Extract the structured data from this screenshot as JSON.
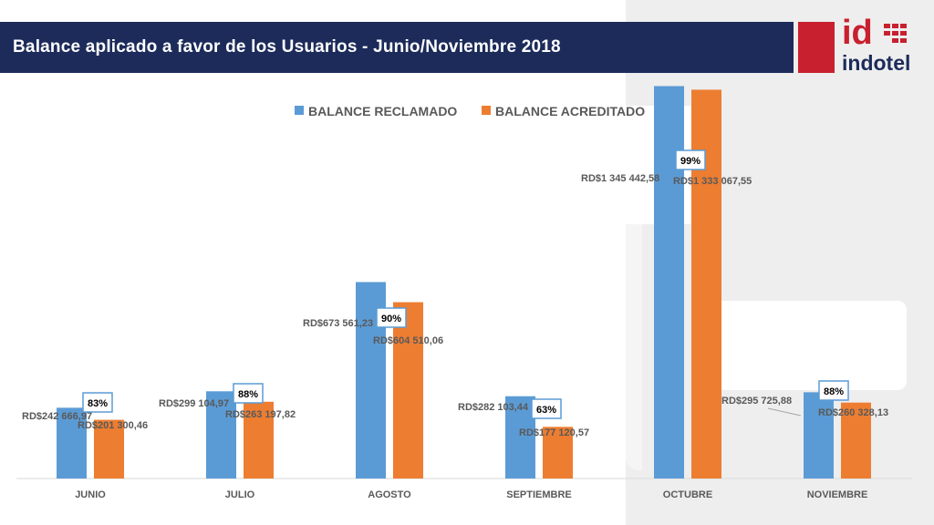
{
  "header": {
    "title": "Balance aplicado a favor de los Usuarios - Junio/Noviembre 2018",
    "logo_id": "id",
    "logo_word": "indotel"
  },
  "colors": {
    "header_bg": "#1c2b5a",
    "logo_red": "#c8202f",
    "reclamado": "#5b9bd5",
    "acreditado": "#ed7d31",
    "percent_box": "#5b9bd5"
  },
  "chart_data": {
    "type": "bar",
    "title": "",
    "xlabel": "",
    "ylabel": "",
    "legend_position": "top-center",
    "grid": false,
    "ylim": [
      0,
      1500000
    ],
    "categories": [
      "JUNIO",
      "JULIO",
      "AGOSTO",
      "SEPTIEMBRE",
      "OCTUBRE",
      "NOVIEMBRE"
    ],
    "series": [
      {
        "name": "BALANCE RECLAMADO",
        "values": [
          242666.97,
          299104.97,
          673561.23,
          282103.44,
          1345442.58,
          295725.88
        ],
        "labels": [
          "RD$242 666,97",
          "RD$299 104,97",
          "RD$673 561,23",
          "RD$282 103,44",
          "RD$1 345 442,58",
          "RD$295 725,88"
        ]
      },
      {
        "name": "BALANCE ACREDITADO",
        "values": [
          201300.46,
          263197.82,
          604510.06,
          177120.57,
          1333067.55,
          260328.13
        ],
        "labels": [
          "RD$201 300,46",
          "RD$263 197,82",
          "RD$604 510,06",
          "RD$177 120,57",
          "RD$1 333 067,55",
          "RD$260 328,13"
        ]
      }
    ],
    "annotations": [
      "83%",
      "88%",
      "90%",
      "63%",
      "99%",
      "88%"
    ]
  }
}
